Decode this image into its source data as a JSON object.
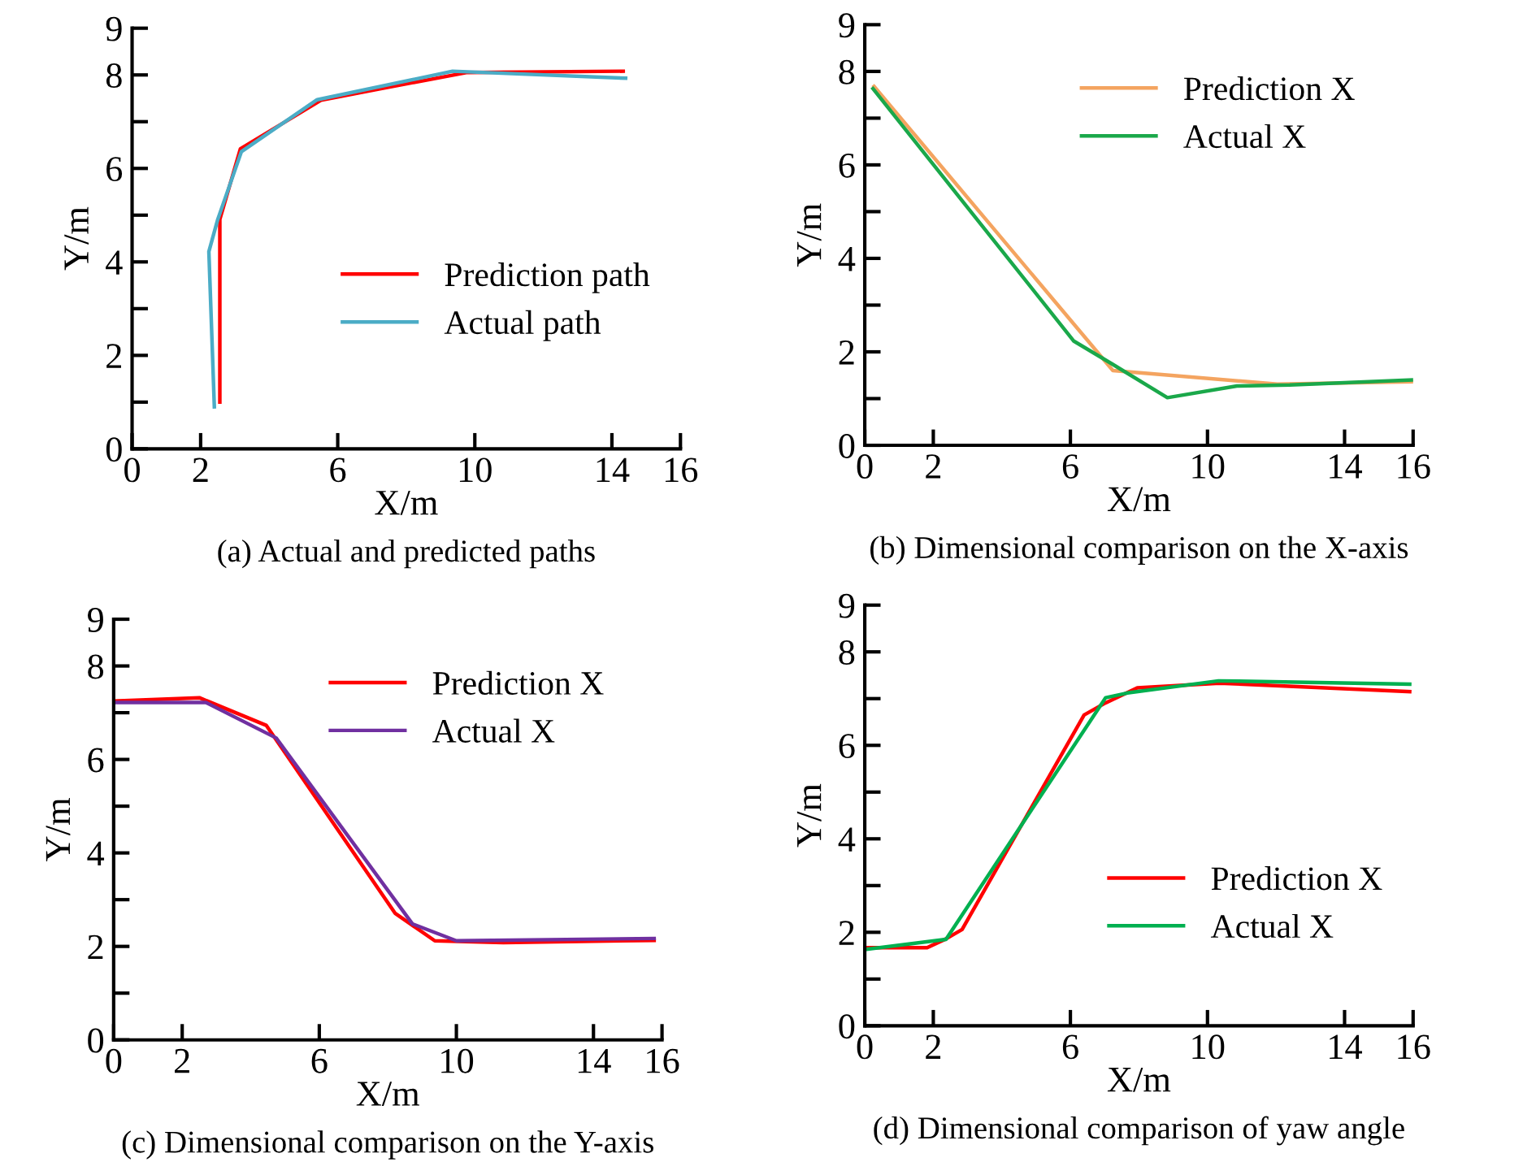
{
  "chart_data": [
    {
      "type": "line",
      "title": "(a) Actual and predicted paths",
      "xlabel": "X/m",
      "ylabel": "Y/m",
      "xlim": [
        0,
        16
      ],
      "ylim": [
        0,
        9
      ],
      "xticks": [
        0,
        2,
        6,
        10,
        14,
        16
      ],
      "yticks": [
        0,
        {
          "value": 1,
          "label": null
        },
        2,
        {
          "value": 3,
          "label": null
        },
        4,
        {
          "value": 5,
          "label": null
        },
        6,
        {
          "value": 7,
          "label": null
        },
        8,
        9
      ],
      "grid": false,
      "legend": "right",
      "marker": "none",
      "line_style": "solid",
      "series": [
        {
          "name": "Prediction path",
          "color": "#ff0000",
          "x": [
            2.56,
            2.56,
            3.16,
            5.51,
            7.2,
            9.75,
            14.33
          ],
          "values": [
            1.0,
            4.91,
            6.42,
            7.46,
            7.7,
            8.05,
            8.08
          ]
        },
        {
          "name": "Actual path",
          "color": "#4bacc6",
          "x": [
            2.4,
            2.24,
            2.5,
            3.19,
            5.4,
            9.35,
            14.4
          ],
          "values": [
            0.9,
            4.22,
            4.91,
            6.36,
            7.47,
            8.08,
            7.93
          ]
        }
      ]
    },
    {
      "type": "line",
      "title": "(b) Dimensional comparison on the X-axis",
      "xlabel": "X/m",
      "ylabel": "Y/m",
      "xlim": [
        0,
        16
      ],
      "ylim": [
        0,
        9
      ],
      "xticks": [
        0,
        2,
        6,
        10,
        14,
        16
      ],
      "yticks": [
        0,
        {
          "value": 1,
          "label": null
        },
        2,
        {
          "value": 3,
          "label": null
        },
        4,
        {
          "value": 5,
          "label": null
        },
        6,
        {
          "value": 7,
          "label": null
        },
        8,
        9
      ],
      "grid": false,
      "legend": "top right",
      "marker": "none",
      "line_style": "solid",
      "series": [
        {
          "name": "Prediction X",
          "color": "#f4a460",
          "x": [
            0.27,
            7.24,
            12.04,
            16
          ],
          "values": [
            7.68,
            1.6,
            1.31,
            1.36
          ]
        },
        {
          "name": "Actual X",
          "color": "#1aa84a",
          "x": [
            0.24,
            6.1,
            7.24,
            8.83,
            10.86,
            12.4,
            16
          ],
          "values": [
            7.63,
            2.23,
            1.73,
            1.02,
            1.27,
            1.29,
            1.4
          ]
        }
      ]
    },
    {
      "type": "line",
      "title": "(c) Dimensional comparison on the Y-axis",
      "xlabel": "X/m",
      "ylabel": "Y/m",
      "xlim": [
        0,
        16
      ],
      "ylim": [
        0,
        9
      ],
      "xticks": [
        0,
        2,
        6,
        10,
        14,
        16
      ],
      "yticks": [
        0,
        {
          "value": 1,
          "label": null
        },
        2,
        {
          "value": 3,
          "label": null
        },
        4,
        {
          "value": 5,
          "label": null
        },
        6,
        {
          "value": 7,
          "label": null
        },
        8,
        9
      ],
      "grid": false,
      "legend": "top right",
      "marker": "none",
      "line_style": "solid",
      "series": [
        {
          "name": "Prediction X",
          "color": "#ff0000",
          "x": [
            0,
            2.5,
            4.45,
            8.21,
            9.37,
            11.37,
            15.77
          ],
          "values": [
            7.25,
            7.32,
            6.73,
            2.71,
            2.12,
            2.08,
            2.13
          ]
        },
        {
          "name": "Actual X",
          "color": "#7030a0",
          "x": [
            0,
            2.69,
            4.74,
            8.72,
            10,
            15.77
          ],
          "values": [
            7.22,
            7.22,
            6.46,
            2.48,
            2.12,
            2.17
          ]
        }
      ]
    },
    {
      "type": "line",
      "title": "(d) Dimensional comparison of yaw angle",
      "xlabel": "X/m",
      "ylabel": "Y/m",
      "xlim": [
        0,
        16
      ],
      "ylim": [
        0,
        9
      ],
      "xticks": [
        0,
        2,
        6,
        10,
        14,
        16
      ],
      "yticks": [
        0,
        {
          "value": 1,
          "label": null
        },
        2,
        {
          "value": 3,
          "label": null
        },
        4,
        {
          "value": 5,
          "label": null
        },
        6,
        {
          "value": 7,
          "label": null
        },
        8,
        9
      ],
      "grid": false,
      "legend": "bottom right",
      "marker": "none",
      "line_style": "solid",
      "series": [
        {
          "name": "Prediction X",
          "color": "#ff0000",
          "x": [
            0,
            1.82,
            2.37,
            2.84,
            6.4,
            7.03,
            7.95,
            10.35,
            15.9
          ],
          "values": [
            1.67,
            1.67,
            1.86,
            2.06,
            6.65,
            6.91,
            7.23,
            7.33,
            7.15
          ]
        },
        {
          "name": "Actual X",
          "color": "#00b050",
          "x": [
            0,
            2.37,
            7.03,
            7.66,
            10.32,
            15.9
          ],
          "values": [
            1.63,
            1.85,
            7.02,
            7.12,
            7.38,
            7.31
          ]
        }
      ]
    }
  ]
}
